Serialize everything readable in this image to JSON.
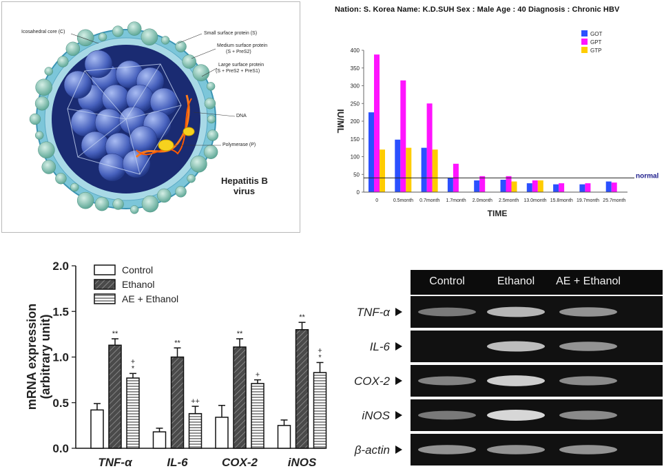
{
  "virus_diagram": {
    "labels": {
      "core": "Icosahedral core (C)",
      "small": "Small surface protein (S)",
      "medium_1": "Medium surface protein",
      "medium_2": "(S + PreS2)",
      "large_1": "Large surface protein",
      "large_2": "(S + PreS2 + PreS1)",
      "dna": "DNA",
      "polymerase": "Polymerase (P)"
    },
    "title_1": "Hepatitis B",
    "title_2": "virus"
  },
  "liver_chart": {
    "patient_info": "Nation: S. Korea   Name: K.D.SUH   Sex : Male   Age : 40   Diagnosis : Chronic HBV",
    "normal_label": "normal"
  },
  "mrna_chart": {
    "sig_labels": [
      [
        "",
        "**",
        "+\n*"
      ],
      [
        "",
        "**",
        "++"
      ],
      [
        "",
        "**",
        "+"
      ],
      [
        "",
        "**",
        "+\n*"
      ]
    ]
  },
  "gel": {
    "columns": [
      "Control",
      "Ethanol",
      "AE + Ethanol"
    ],
    "rows": [
      "TNF-α",
      "IL-6",
      "COX-2",
      "iNOS",
      "β-actin"
    ],
    "intensities": [
      [
        0.45,
        0.8,
        0.6
      ],
      [
        0.0,
        0.85,
        0.6
      ],
      [
        0.5,
        0.95,
        0.55
      ],
      [
        0.45,
        1.0,
        0.55
      ],
      [
        0.6,
        0.6,
        0.6
      ]
    ]
  },
  "chart_data": [
    {
      "type": "bar",
      "categories": [
        "0",
        "0.5month",
        "0.7month",
        "1.7month",
        "2.0month",
        "2.5month",
        "13.0month",
        "15.8month",
        "19.7month",
        "25.7month"
      ],
      "series": [
        {
          "name": "GOT",
          "color": "#2b50ff",
          "values": [
            225,
            148,
            125,
            40,
            33,
            35,
            25,
            22,
            22,
            30
          ]
        },
        {
          "name": "GPT",
          "color": "#ff14ff",
          "values": [
            388,
            315,
            250,
            80,
            45,
            45,
            33,
            25,
            25,
            27
          ]
        },
        {
          "name": "GTP",
          "color": "#ffcc00",
          "values": [
            120,
            125,
            120,
            0,
            0,
            30,
            33,
            0,
            0,
            0
          ]
        }
      ],
      "xlabel": "TIME",
      "ylabel": "IU/ML",
      "ylim": [
        0,
        400
      ],
      "yticks": [
        0,
        50,
        100,
        150,
        200,
        250,
        300,
        350,
        400
      ],
      "reference_line": {
        "value": 40,
        "label": "normal"
      },
      "legend": "top-right"
    },
    {
      "type": "bar",
      "categories": [
        "TNF-α",
        "IL-6",
        "COX-2",
        "iNOS"
      ],
      "series": [
        {
          "name": "Control",
          "values": [
            0.42,
            0.18,
            0.34,
            0.25
          ],
          "errors": [
            0.07,
            0.04,
            0.13,
            0.06
          ]
        },
        {
          "name": "Ethanol",
          "values": [
            1.13,
            1.0,
            1.11,
            1.3
          ],
          "errors": [
            0.07,
            0.1,
            0.09,
            0.08
          ]
        },
        {
          "name": "AE + Ethanol",
          "values": [
            0.77,
            0.38,
            0.71,
            0.83
          ],
          "errors": [
            0.05,
            0.08,
            0.04,
            0.11
          ]
        }
      ],
      "ylabel": "mRNA expression\n(arbitrary unit)",
      "ylim": [
        0,
        2.0
      ],
      "yticks": [
        0.0,
        0.5,
        1.0,
        1.5,
        2.0
      ],
      "legend": "top-left"
    }
  ]
}
